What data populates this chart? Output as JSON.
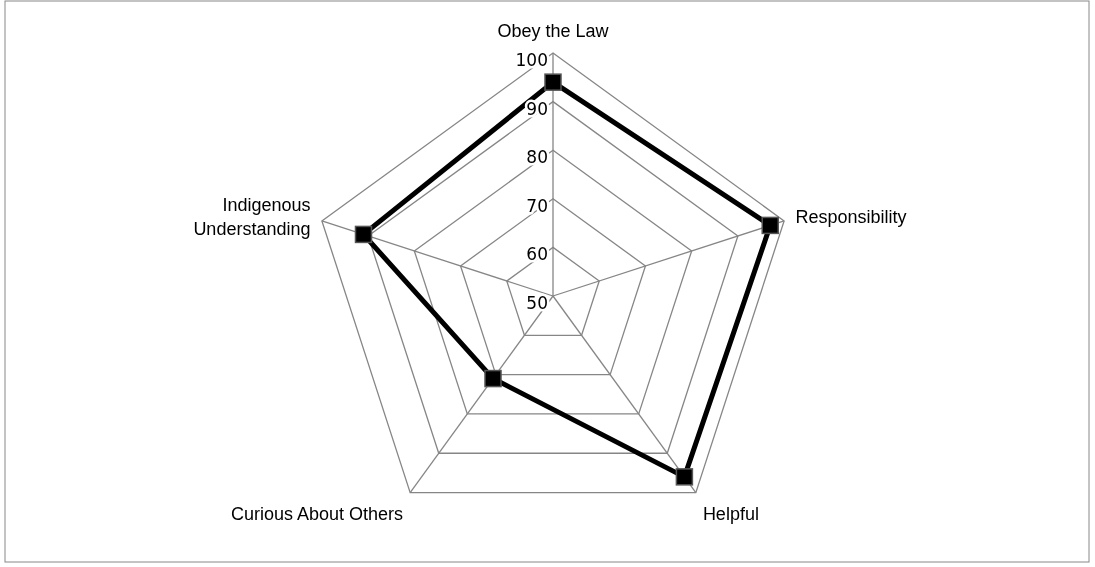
{
  "chart_data": {
    "type": "radar",
    "categories": [
      "Obey the Law",
      "Responsibility",
      "Helpful",
      "Curious About Others",
      "Indigenous Understanding"
    ],
    "series": [
      {
        "color": "#000000",
        "values": [
          94,
          97,
          96,
          71,
          91
        ]
      }
    ],
    "ylim": [
      50,
      100
    ],
    "yticks": [
      50,
      60,
      70,
      80,
      90,
      100
    ],
    "grid": true,
    "marker": "square",
    "line_style": "solid"
  }
}
